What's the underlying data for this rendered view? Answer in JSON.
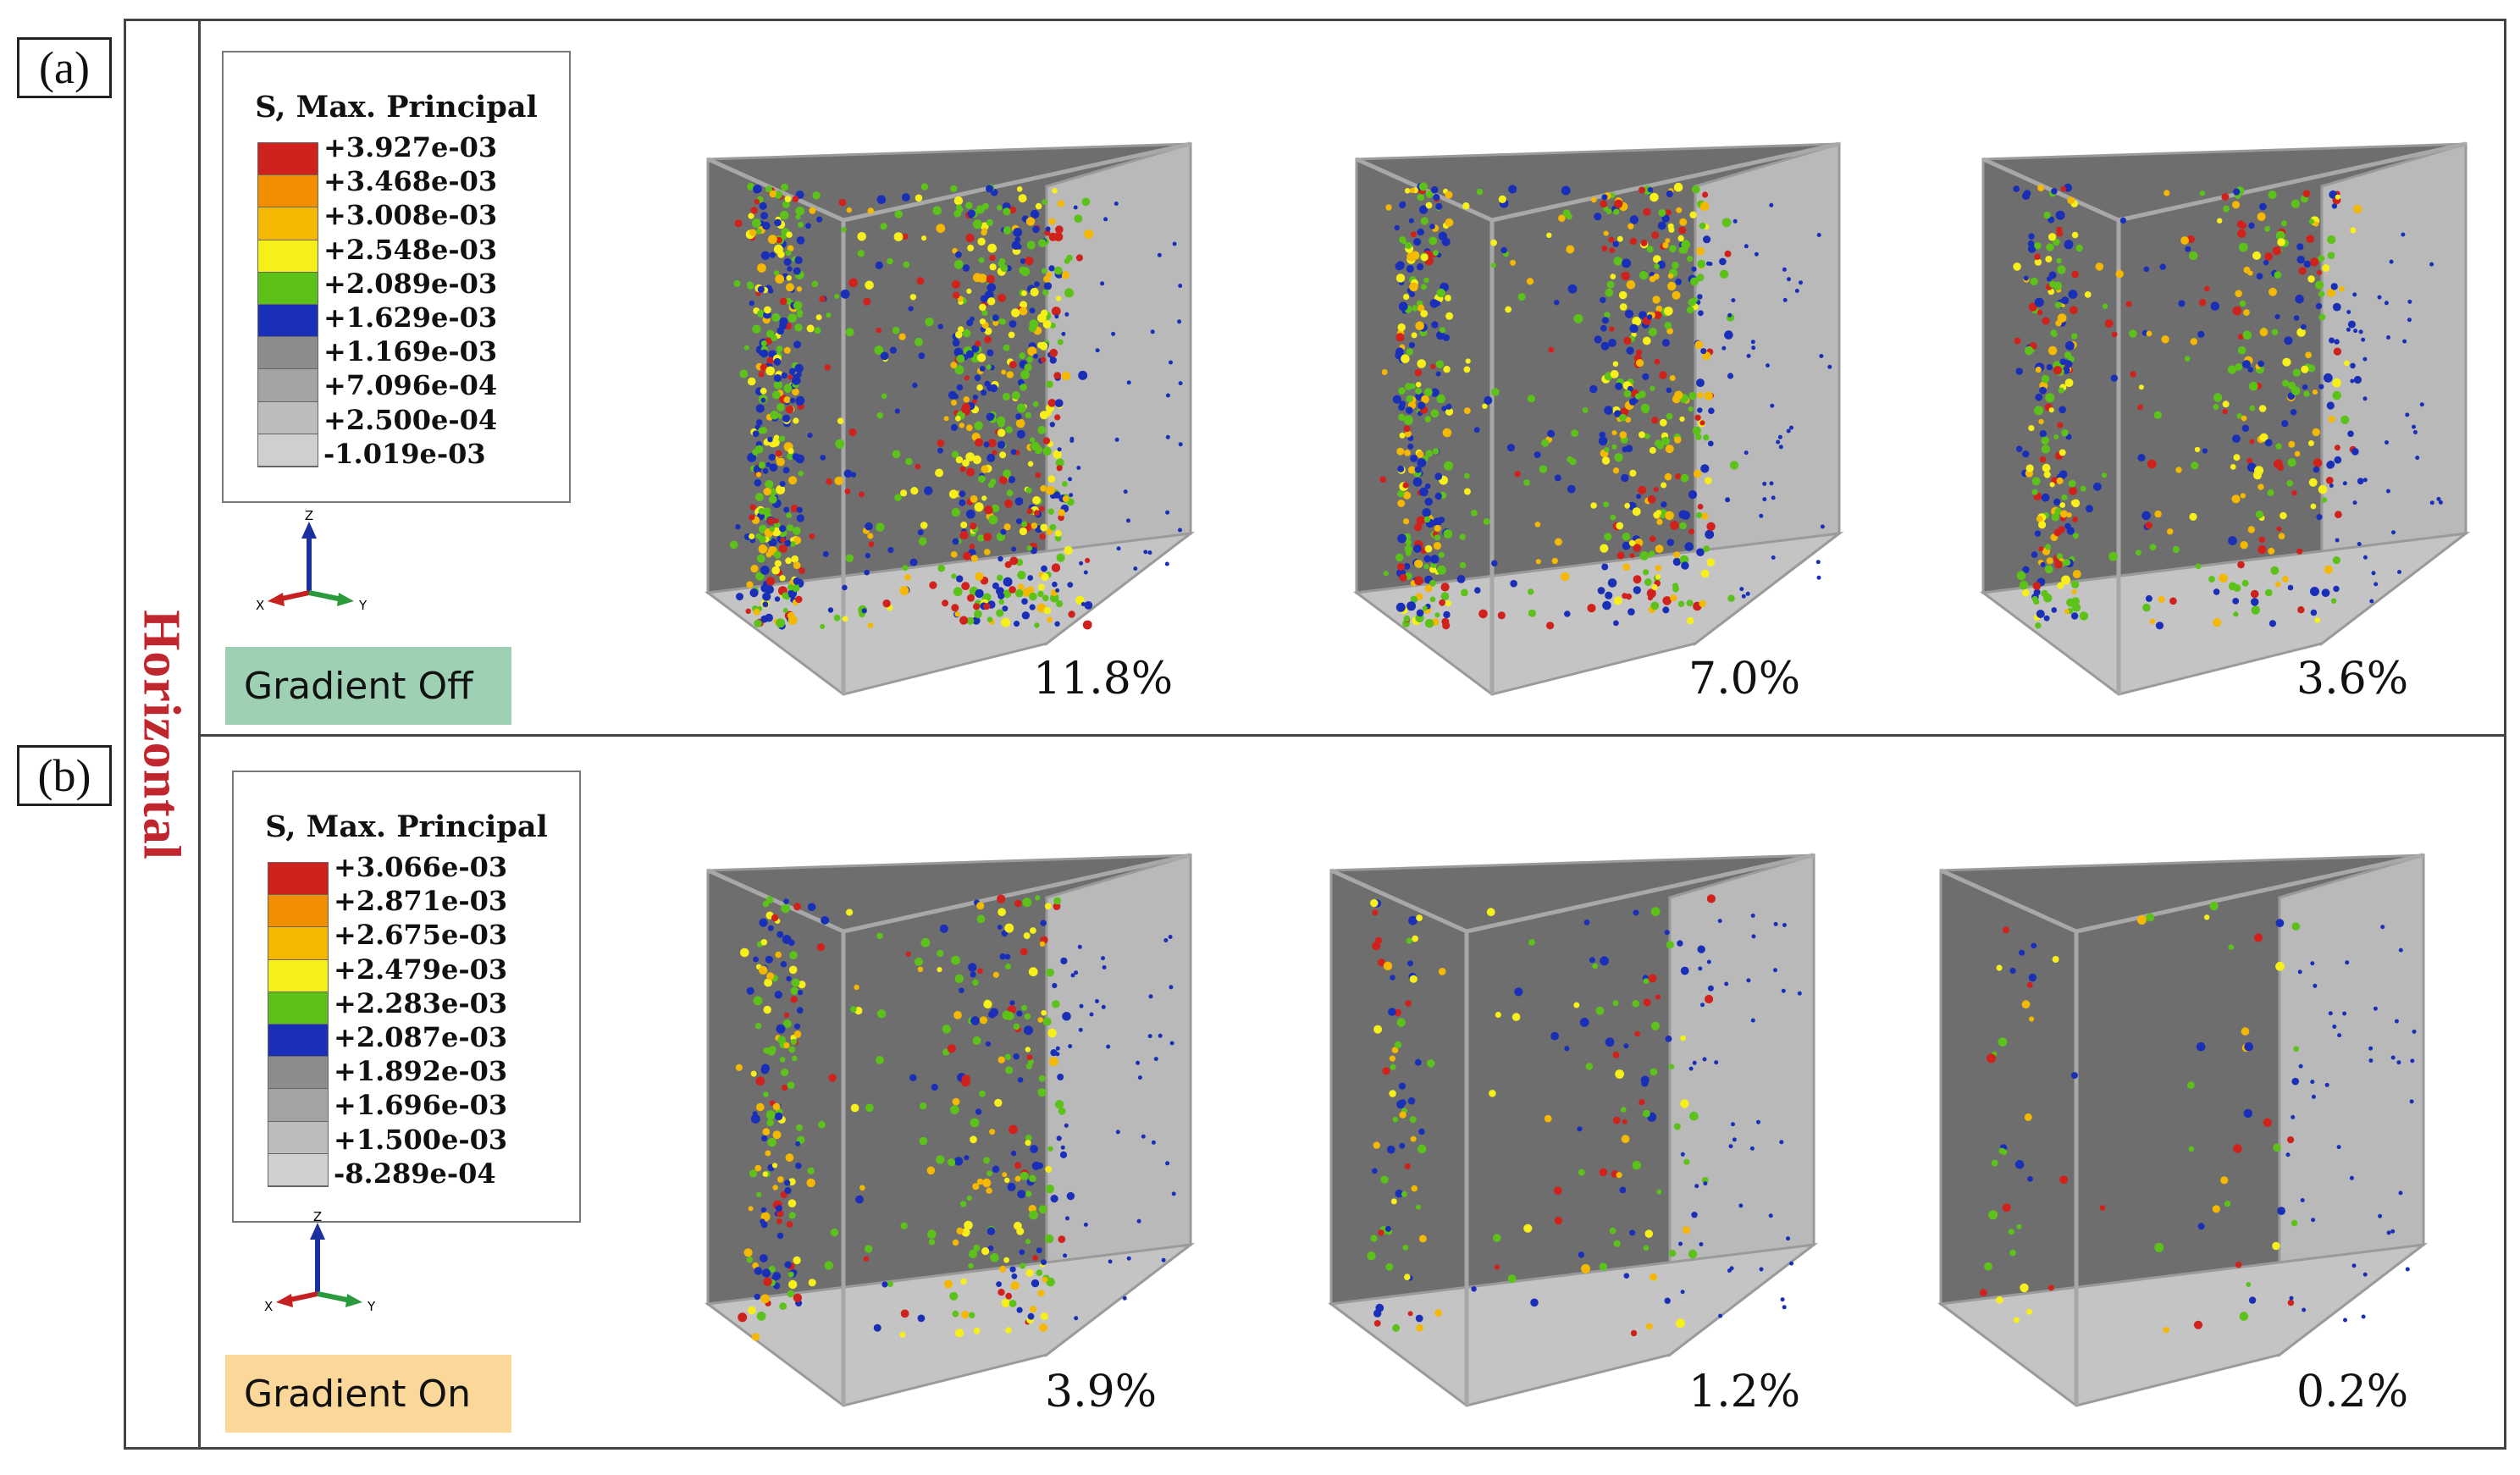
{
  "side_label": "Horizontal",
  "panels": [
    {
      "letter": "(a)",
      "condition": "Gradient Off",
      "condition_color": "#9ed1b4",
      "legend": {
        "title": "S, Max. Principal",
        "values": [
          "+3.927e-03",
          "+3.468e-03",
          "+3.008e-03",
          "+2.548e-03",
          "+2.089e-03",
          "+1.629e-03",
          "+1.169e-03",
          "+7.096e-04",
          "+2.500e-04",
          "-1.019e-03"
        ]
      },
      "axes": {
        "z": "Z",
        "x": "X",
        "y": "Y"
      },
      "percentages": [
        "11.8%",
        "7.0%",
        "3.6%"
      ]
    },
    {
      "letter": "(b)",
      "condition": "Gradient On",
      "condition_color": "#fbd89a",
      "legend": {
        "title": "S, Max. Principal",
        "values": [
          "+3.066e-03",
          "+2.871e-03",
          "+2.675e-03",
          "+2.479e-03",
          "+2.283e-03",
          "+2.087e-03",
          "+1.892e-03",
          "+1.696e-03",
          "+1.500e-03",
          "-8.289e-04"
        ]
      },
      "axes": {
        "z": "Z",
        "x": "X",
        "y": "Y"
      },
      "percentages": [
        "3.9%",
        "1.2%",
        "0.2%"
      ]
    }
  ],
  "legend_colors": [
    "#d0221c",
    "#f28f00",
    "#f5b800",
    "#f7ef1a",
    "#5cc21a",
    "#1a2fb8",
    "#8c8c8c",
    "#a3a3a3",
    "#bcbcbc",
    "#cfcfcf"
  ]
}
